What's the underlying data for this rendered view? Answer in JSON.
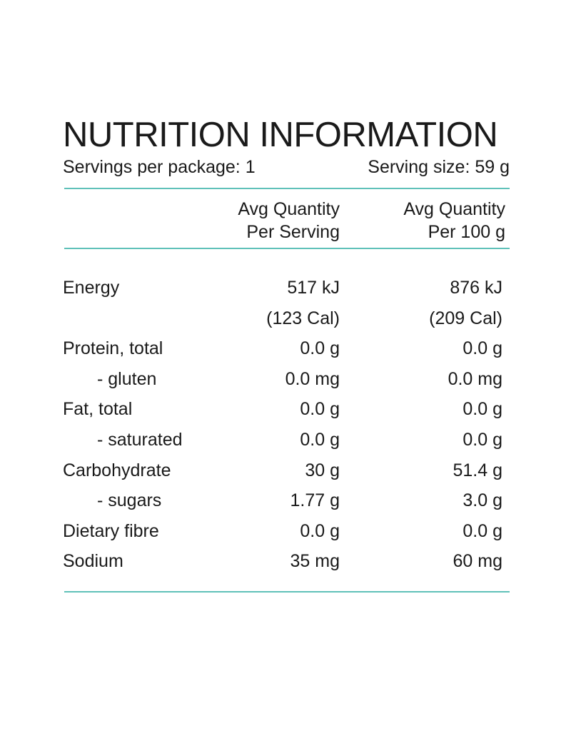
{
  "panel": {
    "title": "NUTRITION INFORMATION",
    "servings_per_package": "Servings per package: 1",
    "serving_size": "Serving size: 59 g"
  },
  "columns": [
    {
      "line1": "Avg Quantity",
      "line2": "Per Serving"
    },
    {
      "line1": "Avg Quantity",
      "line2": "Per 100 g"
    }
  ],
  "rows": [
    {
      "label": "Energy",
      "per_serving": "517 kJ",
      "per_100g": "876 kJ"
    },
    {
      "label": "",
      "per_serving": "(123 Cal)",
      "per_100g": "(209 Cal)"
    },
    {
      "label": "Protein, total",
      "per_serving": "0.0 g",
      "per_100g": "0.0 g"
    },
    {
      "label": "- gluten",
      "per_serving": "0.0 mg",
      "per_100g": "0.0 mg"
    },
    {
      "label": "Fat, total",
      "per_serving": "0.0 g",
      "per_100g": "0.0 g"
    },
    {
      "label": "- saturated",
      "per_serving": "0.0 g",
      "per_100g": "0.0 g"
    },
    {
      "label": "Carbohydrate",
      "per_serving": "30 g",
      "per_100g": "51.4 g"
    },
    {
      "label": "- sugars",
      "per_serving": "1.77 g",
      "per_100g": "3.0 g"
    },
    {
      "label": "Dietary fibre",
      "per_serving": "0.0 g",
      "per_100g": "0.0 g"
    },
    {
      "label": "Sodium",
      "per_serving": "35 mg",
      "per_100g": "60 mg"
    }
  ],
  "colors": {
    "rule": "#5fc1b9",
    "text": "#1a1a1a",
    "background": "#ffffff"
  }
}
